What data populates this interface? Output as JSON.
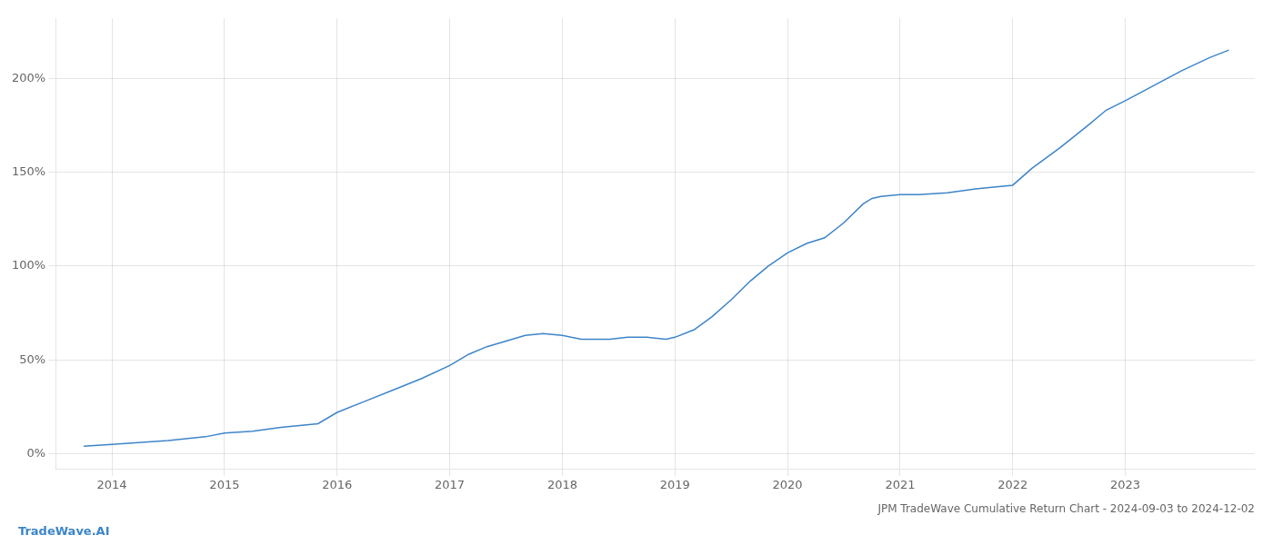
{
  "chart_data": {
    "type": "line",
    "title": "JPM TradeWave Cumulative Return Chart - 2024-09-03 to 2024-12-02",
    "annotations": [
      "TradeWave.AI"
    ],
    "color": "#3d85c8",
    "x": [
      2013.75,
      2014.0,
      2014.5,
      2014.83,
      2015.0,
      2015.25,
      2015.5,
      2015.83,
      2016.0,
      2016.25,
      2016.5,
      2016.75,
      2017.0,
      2017.17,
      2017.33,
      2017.5,
      2017.67,
      2017.83,
      2018.0,
      2018.08,
      2018.17,
      2018.42,
      2018.58,
      2018.75,
      2018.92,
      2019.0,
      2019.17,
      2019.33,
      2019.5,
      2019.67,
      2019.83,
      2020.0,
      2020.17,
      2020.33,
      2020.5,
      2020.67,
      2020.75,
      2020.83,
      2021.0,
      2021.17,
      2021.42,
      2021.67,
      2021.83,
      2022.0,
      2022.17,
      2022.42,
      2022.67,
      2022.83,
      2023.0,
      2023.25,
      2023.5,
      2023.75,
      2023.92
    ],
    "values": [
      4,
      5,
      7,
      9,
      11,
      12,
      14,
      16,
      22,
      28,
      34,
      40,
      47,
      53,
      57,
      60,
      63,
      64,
      63,
      62,
      61,
      61,
      62,
      62,
      61,
      62,
      66,
      73,
      82,
      92,
      100,
      107,
      112,
      115,
      123,
      133,
      136,
      137,
      138,
      138,
      139,
      141,
      142,
      143,
      152,
      163,
      175,
      183,
      188,
      196,
      204,
      211,
      215
    ],
    "xlim": [
      2013.5,
      2024.15
    ],
    "xticks": [
      2014,
      2015,
      2016,
      2017,
      2018,
      2019,
      2020,
      2021,
      2022,
      2023
    ],
    "ylim": [
      -8,
      232
    ],
    "yticks": [
      {
        "value": 0,
        "label": "0%"
      },
      {
        "value": 50,
        "label": "50%"
      },
      {
        "value": 100,
        "label": "100%"
      },
      {
        "value": 150,
        "label": "150%"
      },
      {
        "value": 200,
        "label": "200%"
      }
    ],
    "grid": true
  }
}
